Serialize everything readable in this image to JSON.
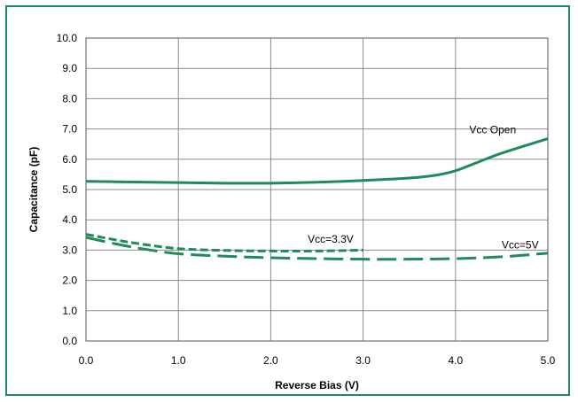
{
  "chart_data": {
    "type": "line",
    "title": "",
    "xlabel": "Reverse Bias (V)",
    "ylabel": "Capacitance (pF)",
    "xlim": [
      0,
      5
    ],
    "ylim": [
      0,
      10
    ],
    "x_ticks": [
      "0.0",
      "1.0",
      "2.0",
      "3.0",
      "4.0",
      "5.0"
    ],
    "y_ticks": [
      "0.0",
      "1.0",
      "2.0",
      "3.0",
      "4.0",
      "5.0",
      "6.0",
      "7.0",
      "8.0",
      "9.0",
      "10.0"
    ],
    "grid": true,
    "series": [
      {
        "name": "Vcc Open",
        "style": "solid",
        "color": "#1f8a5a",
        "x": [
          0,
          0.5,
          1.0,
          1.5,
          2.0,
          2.5,
          3.0,
          3.5,
          3.8,
          4.0,
          4.2,
          4.5,
          5.0
        ],
        "y": [
          5.27,
          5.25,
          5.23,
          5.21,
          5.21,
          5.24,
          5.3,
          5.38,
          5.48,
          5.62,
          5.85,
          6.2,
          6.68
        ]
      },
      {
        "name": "Vcc=3.3V",
        "style": "short-dash",
        "color": "#1f8a5a",
        "x": [
          0,
          0.3,
          0.6,
          1.0,
          1.5,
          2.0,
          2.5,
          3.0
        ],
        "y": [
          3.52,
          3.35,
          3.2,
          3.05,
          2.99,
          2.97,
          2.97,
          3.0
        ]
      },
      {
        "name": "Vcc=5V",
        "style": "long-dash",
        "color": "#1f8a5a",
        "x": [
          0,
          0.3,
          0.6,
          1.0,
          1.5,
          2.0,
          2.5,
          3.0,
          3.5,
          4.0,
          4.5,
          5.0
        ],
        "y": [
          3.42,
          3.22,
          3.05,
          2.88,
          2.8,
          2.75,
          2.72,
          2.7,
          2.7,
          2.72,
          2.78,
          2.9
        ]
      }
    ],
    "annotations": [
      "Vcc Open",
      "Vcc=3.3V",
      "Vcc=5V"
    ]
  }
}
